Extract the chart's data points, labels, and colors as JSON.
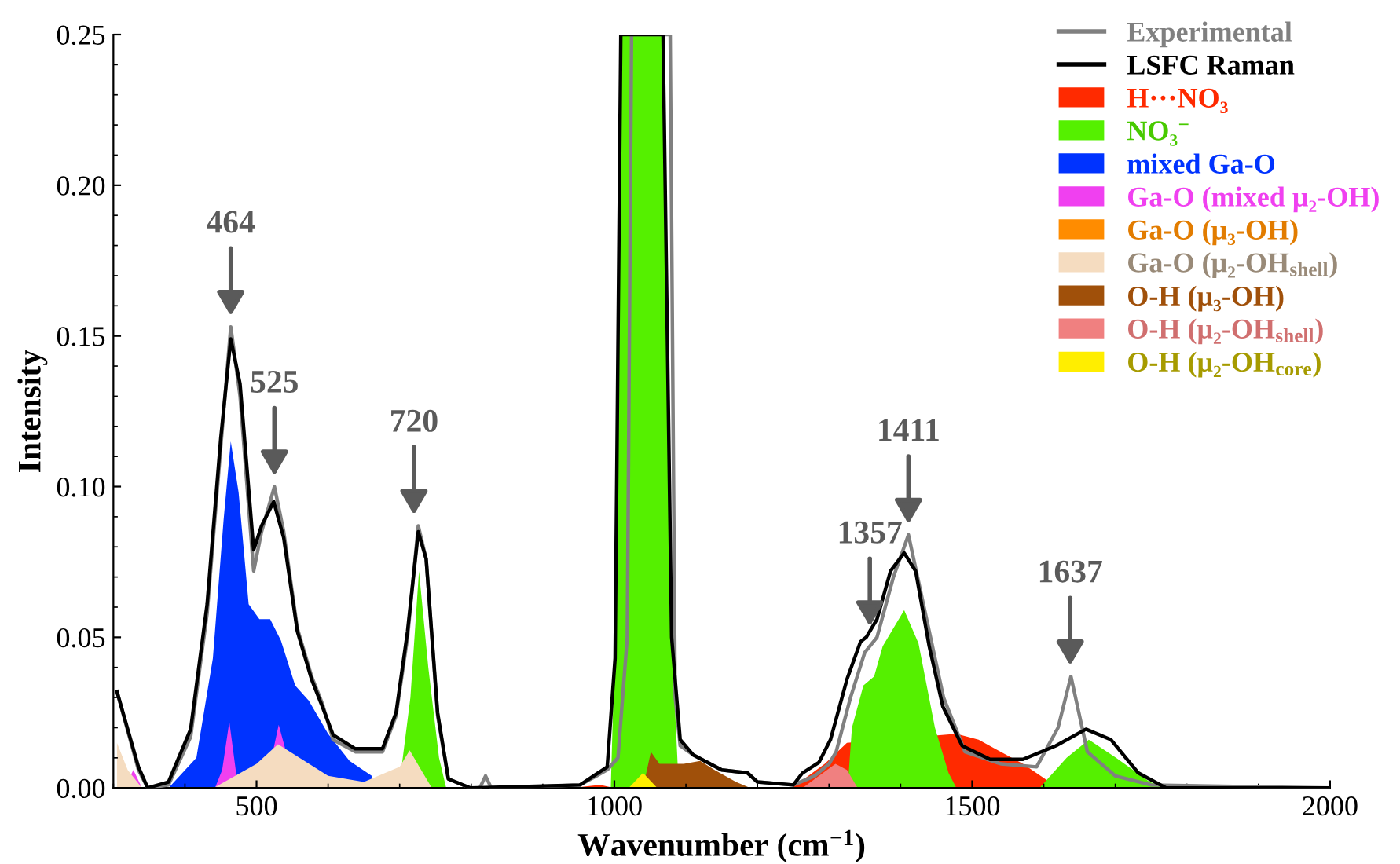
{
  "chart_data": {
    "type": "area",
    "xlabel": "Wavenumber (cm$^{−1}$)",
    "ylabel": "Intensity",
    "xlim": [
      300,
      2000
    ],
    "xticks": [
      500,
      1000,
      1500,
      2000
    ],
    "ylim": [
      0,
      0.25
    ],
    "yticks": [
      {
        "value": 0,
        "label": "0.00"
      },
      {
        "value": 0.05,
        "label": "0.05"
      },
      {
        "value": 0.1,
        "label": "0.10"
      },
      {
        "value": 0.15,
        "label": "0.15"
      },
      {
        "value": 0.2,
        "label": "0.20"
      },
      {
        "value": 0.25,
        "label": "0.25"
      }
    ],
    "legend": "top right",
    "grid": false,
    "annotations": [
      {
        "text": "464",
        "x": 464,
        "y": 0.153
      },
      {
        "text": "525",
        "x": 525,
        "y": 0.1
      },
      {
        "text": "720",
        "x": 720,
        "y": 0.087
      },
      {
        "text": "1357",
        "x": 1357,
        "y": 0.05
      },
      {
        "text": "1411",
        "x": 1411,
        "y": 0.084
      },
      {
        "text": "1637",
        "x": 1637,
        "y": 0.037
      }
    ],
    "series": [
      {
        "name": "H···NO₃",
        "color": "#ff2a00",
        "x": [
          940,
          980,
          1000,
          1248,
          1294,
          1325,
          1400,
          1478,
          1509,
          1540,
          1571,
          1602,
          1617
        ],
        "values": [
          0,
          0.001,
          0,
          0,
          0.008,
          0.015,
          null,
          0.018,
          0.016,
          0.012,
          0.008,
          0.003,
          0
        ]
      },
      {
        "name": "NO₃$^{−}$",
        "color": "#55f000",
        "x": [
          699,
          715,
          727,
          740,
          755,
          765,
          995,
          1001,
          1009,
          1040,
          1070,
          1080,
          1090,
          1326,
          1332,
          1348,
          1363,
          1375,
          1405,
          1425,
          1448,
          1467,
          1478,
          1594,
          1632,
          1663,
          1701,
          1748,
          1771
        ],
        "values": [
          0,
          0.03,
          0.072,
          0.04,
          0.01,
          0,
          0,
          0.05,
          0.25,
          0.25,
          0.25,
          0.05,
          0,
          0,
          0.02,
          0.034,
          0.037,
          0.047,
          0.059,
          0.048,
          0.02,
          0.005,
          0,
          0,
          0.01,
          0.016,
          0.01,
          0.002,
          0
        ]
      },
      {
        "name": "mixed Ga-O",
        "color": "#0033ff",
        "x": [
          377,
          416,
          439,
          454,
          464,
          475,
          489,
          504,
          519,
          534,
          554,
          573,
          600,
          630,
          661,
          668
        ],
        "values": [
          0,
          0.01,
          0.043,
          0.089,
          0.115,
          0.098,
          0.061,
          0.056,
          0.056,
          0.049,
          0.034,
          0.029,
          0.018,
          0.009,
          0.004,
          0
        ]
      },
      {
        "name": "Ga-O (mixed μ₂-OH)",
        "color": "#f040f0",
        "x": [
          315,
          328,
          340,
          442,
          452,
          462,
          472,
          480,
          512,
          522,
          531,
          545,
          555
        ],
        "values": [
          0,
          0.006,
          0,
          0,
          0.006,
          0.022,
          0.004,
          0,
          0,
          null,
          0.021,
          null,
          0
        ]
      },
      {
        "name": "Ga-O (μ₃-OH)",
        "color": "#ff8c00"
      },
      {
        "name": "Ga-O (μ₂-OH$_{shell}$)",
        "color": "#f5dcc0",
        "x": [
          305,
          320,
          340,
          440,
          500,
          530,
          560,
          600,
          650,
          700,
          714,
          730,
          745
        ],
        "values": [
          0.015,
          0.006,
          0,
          0,
          0.008,
          0.0145,
          0.01,
          0.004,
          0.002,
          0.007,
          0.0125,
          0.006,
          0
        ]
      },
      {
        "name": "O-H (μ₃-OH)",
        "color": "#a0500a",
        "x": [
          1040,
          1051,
          1063,
          1097,
          1120,
          1140,
          1170,
          1190
        ],
        "values": [
          0,
          0.012,
          0.008,
          0.008,
          0.009,
          0.006,
          0.002,
          0
        ]
      },
      {
        "name": "O-H (μ₂-OH$_{shell}$)",
        "color": "#f08080",
        "x": [
          1263,
          1286,
          1309,
          1325,
          1340
        ],
        "values": [
          0,
          0.004,
          0.008,
          0.006,
          0
        ]
      },
      {
        "name": "O-H (μ₂-OH$_{core}$)",
        "color": "#ffee00",
        "x": [
          1020,
          1040,
          1060
        ],
        "values": [
          0,
          0.005,
          0
        ]
      },
      {
        "name": "Experimental",
        "type": "line",
        "color": "#808080",
        "x": [
          305,
          320,
          335,
          348,
          377,
          408,
          431,
          450,
          464,
          477,
          496,
          507,
          525,
          538,
          557,
          577,
          592,
          607,
          638,
          676,
          695,
          711,
          726,
          737,
          753,
          768,
          799,
          812,
          820,
          828,
          952,
          990,
          1005,
          1018,
          1024,
          1078,
          1085,
          1092,
          1110,
          1150,
          1186,
          1200,
          1250,
          1280,
          1300,
          1310,
          1330,
          1350,
          1367,
          1390,
          1411,
          1440,
          1460,
          1490,
          1540,
          1590,
          1620,
          1638,
          1661,
          1700,
          1750,
          2000
        ],
        "values": [
          0.032,
          0.019,
          0.006,
          0,
          0.001,
          0.017,
          0.058,
          0.113,
          0.153,
          0.13,
          0.072,
          0.085,
          0.1,
          0.085,
          0.053,
          0.037,
          0.028,
          0.016,
          0.012,
          0.012,
          0.024,
          0.05,
          0.087,
          0.076,
          0.024,
          0.003,
          0,
          0,
          0.004,
          0,
          0.001,
          0.006,
          0.01,
          0.05,
          0.25,
          0.25,
          0.03,
          0.014,
          0.011,
          0.006,
          0.005,
          0.002,
          0.001,
          0.004,
          0.008,
          0.012,
          0.03,
          0.045,
          0.05,
          0.07,
          0.084,
          0.052,
          0.03,
          0.012,
          0.008,
          0.007,
          0.02,
          0.037,
          0.012,
          0.004,
          0.001,
          0
        ]
      },
      {
        "name": "LSFC Raman",
        "type": "line",
        "color": "#000000",
        "x": [
          305,
          320,
          335,
          348,
          377,
          408,
          431,
          450,
          464,
          477,
          496,
          507,
          524,
          538,
          557,
          577,
          592,
          607,
          638,
          676,
          695,
          711,
          726,
          737,
          753,
          768,
          799,
          952,
          990,
          1001,
          1009,
          1068,
          1080,
          1092,
          1110,
          1150,
          1186,
          1200,
          1250,
          1263,
          1286,
          1302,
          1325,
          1344,
          1352,
          1367,
          1386,
          1405,
          1421,
          1440,
          1459,
          1486,
          1525,
          1571,
          1617,
          1659,
          1694,
          1732,
          1771,
          2000
        ],
        "values": [
          0.032,
          0.0195,
          0.007,
          0,
          0.002,
          0.0195,
          0.061,
          0.116,
          0.149,
          0.134,
          0.079,
          0.087,
          0.095,
          0.083,
          0.052,
          0.036,
          0.027,
          0.0176,
          0.013,
          0.013,
          0.025,
          0.052,
          0.085,
          0.076,
          0.025,
          0.003,
          0,
          0.001,
          0.007,
          0.043,
          0.25,
          0.25,
          0.05,
          0.016,
          0.011,
          0.006,
          0.005,
          0.002,
          0.001,
          0.005,
          0.0085,
          0.016,
          0.036,
          0.0485,
          0.05,
          0.056,
          0.072,
          0.078,
          0.072,
          0.047,
          0.027,
          0.014,
          0.0095,
          0.0095,
          0.014,
          0.0195,
          0.016,
          0.005,
          0,
          0
        ]
      }
    ]
  }
}
